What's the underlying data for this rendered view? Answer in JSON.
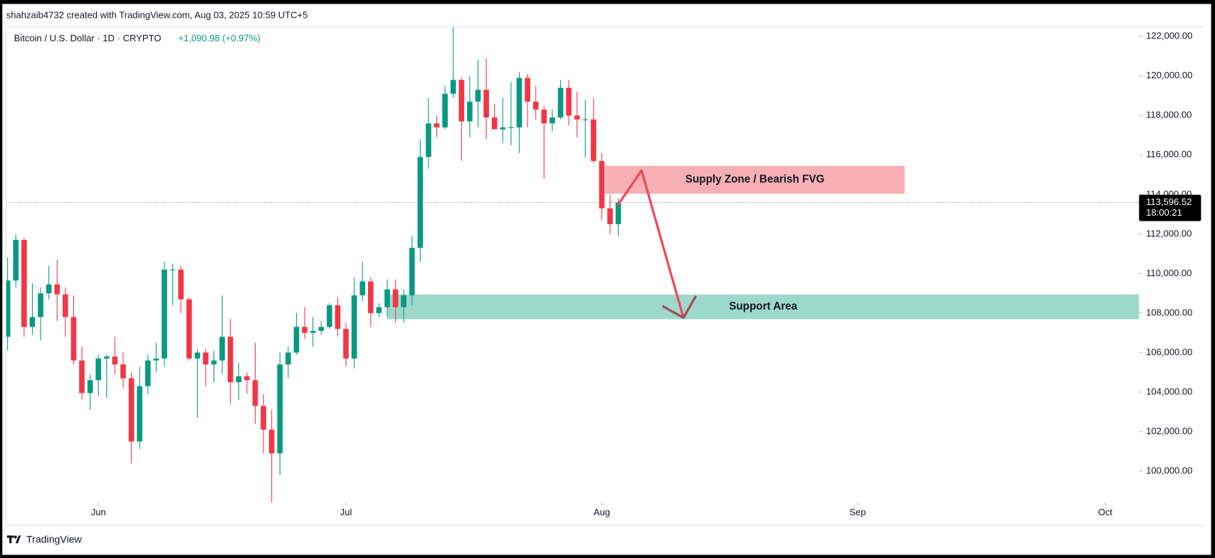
{
  "header": {
    "credit": "shahzaib4732 created with TradingView.com, Aug 03, 2025 10:59 UTC+5"
  },
  "footer": {
    "brand": "TradingView"
  },
  "chart_data": {
    "type": "candlestick",
    "title": "Bitcoin / U.S. Dollar · 1D · CRYPTO",
    "change": "+1,090.98 (+0.97%)",
    "up_color": "#089981",
    "down_color": "#f23645",
    "open": [
      106800,
      109650,
      111700,
      107300,
      107800,
      109000,
      109450,
      108950,
      107800,
      105600,
      103950,
      104600,
      105700,
      105800,
      105400,
      104700,
      101500,
      104300,
      105600,
      105700,
      110200,
      110200,
      108700,
      105700,
      106000,
      105400,
      105600,
      106800,
      104500,
      104800,
      104600,
      103300,
      102100,
      100900,
      105400,
      106000,
      107300,
      107000,
      107100,
      107300,
      108400,
      107200,
      105700,
      108900,
      109600,
      108000,
      108300,
      109200,
      108300,
      108900,
      111300,
      115900,
      117600,
      117400,
      119100,
      119800,
      117700,
      118700,
      119300,
      117900,
      117300,
      117400,
      117400,
      119900,
      118700,
      118300,
      117600,
      117900,
      119400,
      118000,
      117800,
      117800,
      115700,
      113300,
      112500
    ],
    "high": [
      110800,
      111980,
      111800,
      109500,
      109300,
      110400,
      110700,
      109300,
      108900,
      106300,
      104900,
      105900,
      105900,
      106800,
      106000,
      105000,
      105300,
      105900,
      106500,
      110600,
      110500,
      110400,
      108800,
      106200,
      106200,
      106100,
      108900,
      107700,
      105500,
      105000,
      106500,
      103900,
      103100,
      106000,
      106300,
      108000,
      108300,
      107800,
      107600,
      108500,
      108800,
      107500,
      109800,
      110600,
      109800,
      108500,
      109700,
      109700,
      109200,
      111900,
      116800,
      118900,
      118000,
      119500,
      123200,
      119900,
      120000,
      120800,
      120900,
      118600,
      118900,
      119700,
      120200,
      120100,
      119500,
      118500,
      118300,
      119800,
      119800,
      119200,
      118800,
      118900,
      116100,
      114000,
      113800
    ],
    "low": [
      106100,
      109300,
      106800,
      106900,
      106600,
      108700,
      107600,
      106800,
      105400,
      103600,
      103100,
      103800,
      103700,
      104900,
      104200,
      100400,
      101100,
      103900,
      105000,
      105300,
      108400,
      108000,
      105600,
      102700,
      104300,
      104500,
      104900,
      103400,
      103600,
      103900,
      102400,
      100900,
      98200,
      99800,
      104700,
      105900,
      106700,
      106300,
      106900,
      107200,
      106800,
      105300,
      105200,
      108600,
      107300,
      107800,
      107800,
      107500,
      107500,
      108400,
      110600,
      115300,
      116900,
      117300,
      118900,
      115700,
      116900,
      117400,
      116800,
      117300,
      116600,
      116500,
      116100,
      117400,
      117800,
      114800,
      117200,
      117800,
      117500,
      116900,
      115900,
      115600,
      112700,
      112000,
      111900
    ],
    "close": [
      109650,
      111700,
      107300,
      107800,
      109000,
      109450,
      108950,
      107800,
      105600,
      103950,
      104600,
      105700,
      105800,
      105400,
      104700,
      101500,
      104300,
      105600,
      105700,
      110200,
      110200,
      108700,
      105700,
      106000,
      105400,
      105600,
      106800,
      104500,
      104800,
      104600,
      103300,
      102100,
      100900,
      105400,
      106000,
      107300,
      107000,
      107100,
      107300,
      108400,
      107200,
      105700,
      108900,
      109600,
      108000,
      108300,
      109200,
      108300,
      108900,
      111300,
      115900,
      117600,
      117400,
      119100,
      119800,
      117700,
      118700,
      119300,
      117900,
      117300,
      117400,
      117400,
      119900,
      118700,
      118300,
      117600,
      117900,
      119400,
      118000,
      117800,
      117800,
      115700,
      113300,
      112500,
      113596.52
    ],
    "xlim": [
      -0.17,
      137.1
    ],
    "xticks": [
      {
        "value": 11,
        "label": "Jun"
      },
      {
        "value": 41,
        "label": "Jul"
      },
      {
        "value": 72,
        "label": "Aug"
      },
      {
        "value": 103,
        "label": "Sep"
      },
      {
        "value": 133,
        "label": "Oct"
      }
    ],
    "ylim": [
      98430,
      122470
    ],
    "yticks": [
      {
        "value": 100000,
        "label": "100,000.00"
      },
      {
        "value": 102000,
        "label": "102,000.00"
      },
      {
        "value": 104000,
        "label": "104,000.00"
      },
      {
        "value": 106000,
        "label": "106,000.00"
      },
      {
        "value": 108000,
        "label": "108,000.00"
      },
      {
        "value": 110000,
        "label": "110,000.00"
      },
      {
        "value": 112000,
        "label": "112,000.00"
      },
      {
        "value": 114000,
        "label": "114,000.00"
      },
      {
        "value": 116000,
        "label": "116,000.00"
      },
      {
        "value": 118000,
        "label": "118,000.00"
      },
      {
        "value": 120000,
        "label": "120,000.00"
      },
      {
        "value": 122000,
        "label": "122,000.00"
      }
    ],
    "last_price": {
      "value": 113596.52,
      "label": "113,596.52"
    },
    "countdown": "18:00:21",
    "zones": [
      {
        "label": "Supply Zone / Bearish FVG",
        "x": [
          72.4,
          108.7
        ],
        "y": [
          114040,
          115450
        ],
        "color": "#f7b0b5"
      },
      {
        "label": "Support Area",
        "x": [
          46.0,
          137.1
        ],
        "y": [
          107690,
          108940
        ],
        "color": "#9dd8cc"
      }
    ]
  }
}
